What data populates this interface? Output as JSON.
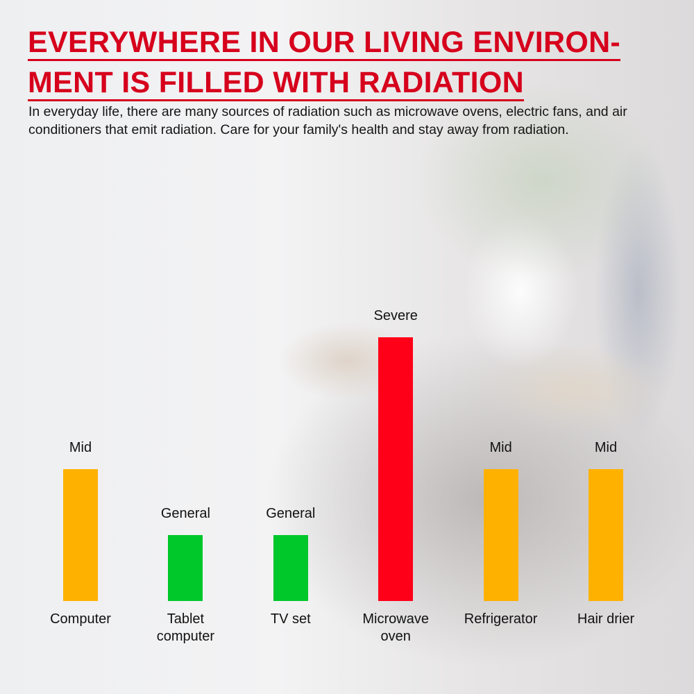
{
  "title": {
    "line1": "EVERYWHERE IN OUR LIVING ENVIRON-",
    "line2": "MENT IS FILLED WITH RADIATION"
  },
  "description": "In everyday life, there are many sources of radiation such as microwave ovens, electric fans, and air conditioners that emit radiation. Care for your family's health and stay away from radiation.",
  "colors": {
    "title": "#d6001c",
    "General": "#00c72a",
    "Mid": "#ffb100",
    "Severe": "#ff0019"
  },
  "chart_data": {
    "type": "bar",
    "categories": [
      "Computer",
      "Tablet\ncomputer",
      "TV set",
      "Microwave\noven",
      "Refrigerator",
      "Hair drier"
    ],
    "levels": [
      "Mid",
      "General",
      "General",
      "Severe",
      "Mid",
      "Mid"
    ],
    "values": [
      2,
      1,
      1,
      4,
      2,
      2
    ],
    "level_scale": {
      "General": 1,
      "Mid": 2,
      "Severe": 4
    },
    "xlabel": "",
    "ylabel": "",
    "ylim": [
      0,
      4
    ],
    "grid": false
  }
}
